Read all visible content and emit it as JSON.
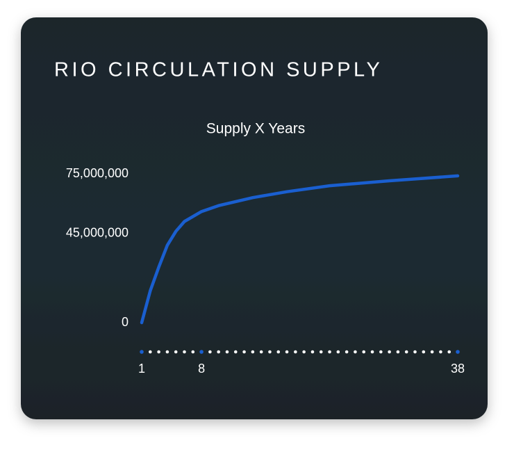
{
  "chart_data": {
    "type": "line",
    "title": "RIO CIRCULATION SUPPLY",
    "subtitle": "Supply X Years",
    "x": [
      1,
      2,
      3,
      4,
      5,
      6,
      8,
      10,
      14,
      18,
      23,
      30,
      38
    ],
    "series": [
      {
        "color": "#1a5fd0",
        "values": [
          0,
          16000000,
          28000000,
          39000000,
          46000000,
          51000000,
          56000000,
          59000000,
          63000000,
          66000000,
          69000000,
          71500000,
          74000000
        ]
      }
    ],
    "xlim": [
      1,
      38
    ],
    "xticks": [
      1,
      8,
      38
    ],
    "ylim": [
      0,
      75000000
    ],
    "yticks": [
      {
        "value": 0,
        "label": "0"
      },
      {
        "value": 45000000,
        "label": "45,000,000"
      },
      {
        "value": 75000000,
        "label": "75,000,000"
      }
    ]
  }
}
